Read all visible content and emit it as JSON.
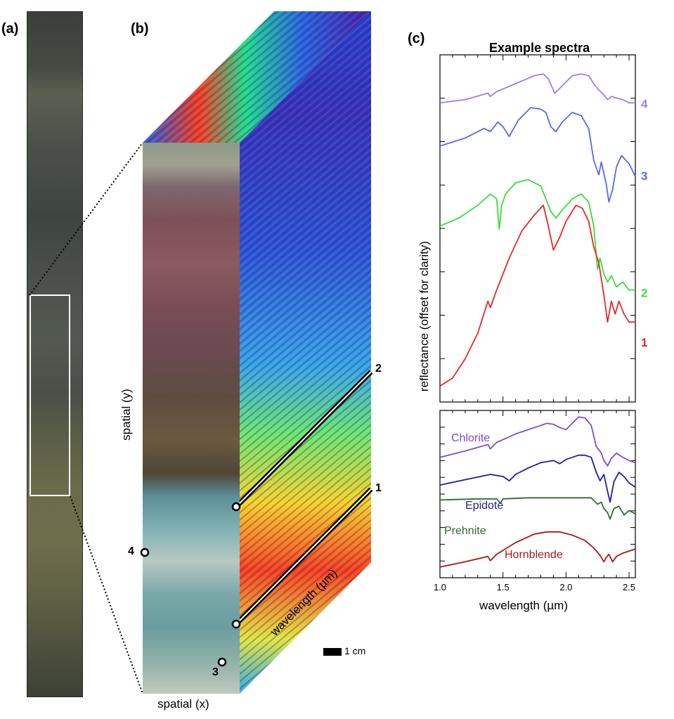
{
  "panels": {
    "a": "(a)",
    "b": "(b)",
    "c": "(c)"
  },
  "cube": {
    "axis_y": "spatial (y)",
    "axis_x": "spatial (x)",
    "axis_z": "wavelength (µm)",
    "scale_bar": "1 cm",
    "point_labels": [
      "1",
      "2",
      "3",
      "4"
    ]
  },
  "chart_data": [
    {
      "type": "line",
      "title": "Example spectra",
      "ylabel": "reflectance (offset for clarity)",
      "xlim": [
        1.0,
        2.55
      ],
      "series": [
        {
          "name": "4",
          "color": "#9f7fe0",
          "x": [
            1.0,
            1.2,
            1.38,
            1.4,
            1.45,
            1.6,
            1.75,
            1.82,
            1.86,
            1.91,
            1.95,
            2.05,
            2.12,
            2.18,
            2.22,
            2.26,
            2.3,
            2.33,
            2.36,
            2.4,
            2.45,
            2.5,
            2.55
          ],
          "y": [
            0.82,
            0.84,
            0.88,
            0.86,
            0.89,
            0.94,
            0.99,
            1.0,
            0.97,
            0.88,
            0.91,
            0.99,
            1.0,
            0.99,
            0.94,
            0.9,
            0.87,
            0.84,
            0.86,
            0.85,
            0.84,
            0.82,
            0.82
          ]
        },
        {
          "name": "3",
          "color": "#5a6ae0",
          "x": [
            1.0,
            1.2,
            1.35,
            1.4,
            1.46,
            1.5,
            1.55,
            1.62,
            1.72,
            1.8,
            1.84,
            1.88,
            1.92,
            1.97,
            2.05,
            2.12,
            2.18,
            2.22,
            2.26,
            2.28,
            2.32,
            2.34,
            2.37,
            2.4,
            2.44,
            2.5,
            2.55
          ],
          "y": [
            0.55,
            0.6,
            0.66,
            0.64,
            0.7,
            0.67,
            0.61,
            0.71,
            0.79,
            0.78,
            0.76,
            0.67,
            0.64,
            0.7,
            0.76,
            0.74,
            0.66,
            0.46,
            0.37,
            0.45,
            0.31,
            0.2,
            0.28,
            0.42,
            0.49,
            0.44,
            0.36
          ]
        },
        {
          "name": "2",
          "color": "#3cdc3c",
          "x": [
            1.0,
            1.15,
            1.3,
            1.4,
            1.45,
            1.47,
            1.49,
            1.52,
            1.6,
            1.7,
            1.8,
            1.88,
            1.92,
            1.97,
            2.05,
            2.12,
            2.18,
            2.22,
            2.25,
            2.27,
            2.3,
            2.33,
            2.36,
            2.4,
            2.45,
            2.5,
            2.55
          ],
          "y": [
            0.05,
            0.1,
            0.18,
            0.25,
            0.22,
            0.03,
            0.18,
            0.25,
            0.32,
            0.34,
            0.3,
            0.14,
            0.1,
            0.15,
            0.22,
            0.25,
            0.2,
            0.05,
            -0.22,
            -0.15,
            -0.25,
            -0.3,
            -0.26,
            -0.33,
            -0.3,
            -0.35,
            -0.35
          ]
        },
        {
          "name": "1",
          "color": "#e62828",
          "x": [
            1.0,
            1.1,
            1.2,
            1.3,
            1.38,
            1.4,
            1.45,
            1.55,
            1.65,
            1.75,
            1.82,
            1.86,
            1.9,
            1.95,
            2.0,
            2.08,
            2.13,
            2.18,
            2.22,
            2.26,
            2.3,
            2.33,
            2.36,
            2.39,
            2.42,
            2.46,
            2.5,
            2.55
          ],
          "y": [
            -0.95,
            -0.9,
            -0.78,
            -0.62,
            -0.42,
            -0.46,
            -0.35,
            -0.15,
            0.02,
            0.12,
            0.18,
            0.05,
            -0.1,
            -0.02,
            0.08,
            0.18,
            0.16,
            0.08,
            -0.08,
            -0.18,
            -0.38,
            -0.55,
            -0.42,
            -0.5,
            -0.42,
            -0.5,
            -0.55,
            -0.55
          ]
        }
      ]
    },
    {
      "type": "line",
      "xlabel": "wavelength (µm)",
      "xlim": [
        1.0,
        2.55
      ],
      "xticks": [
        "1.0",
        "1.5",
        "2.0",
        "2.5"
      ],
      "series": [
        {
          "name": "Chlorite",
          "color": "#7a4fcf",
          "x": [
            1.0,
            1.2,
            1.38,
            1.4,
            1.45,
            1.6,
            1.75,
            1.85,
            1.9,
            1.95,
            2.0,
            2.05,
            2.1,
            2.15,
            2.2,
            2.24,
            2.28,
            2.3,
            2.33,
            2.36,
            2.4,
            2.45,
            2.5,
            2.55
          ],
          "y": [
            0.58,
            0.64,
            0.7,
            0.66,
            0.72,
            0.8,
            0.86,
            0.9,
            0.89,
            0.86,
            0.84,
            0.9,
            0.96,
            0.95,
            0.88,
            0.68,
            0.62,
            0.55,
            0.5,
            0.57,
            0.62,
            0.58,
            0.55,
            0.53
          ]
        },
        {
          "name": "Epidote",
          "color": "#1f1f9a",
          "x": [
            1.0,
            1.2,
            1.4,
            1.5,
            1.55,
            1.6,
            1.7,
            1.8,
            1.9,
            1.95,
            2.0,
            2.05,
            2.1,
            2.15,
            2.2,
            2.24,
            2.27,
            2.3,
            2.33,
            2.35,
            2.38,
            2.42,
            2.46,
            2.5,
            2.55
          ],
          "y": [
            0.32,
            0.37,
            0.42,
            0.4,
            0.36,
            0.42,
            0.48,
            0.53,
            0.55,
            0.52,
            0.56,
            0.58,
            0.6,
            0.6,
            0.58,
            0.44,
            0.36,
            0.42,
            0.26,
            0.16,
            0.35,
            0.44,
            0.4,
            0.34,
            0.3
          ]
        },
        {
          "name": "Prehnite",
          "color": "#2f6a2f",
          "x": [
            1.0,
            1.3,
            1.45,
            1.48,
            1.5,
            1.7,
            1.9,
            2.1,
            2.2,
            2.25,
            2.28,
            2.3,
            2.33,
            2.35,
            2.38,
            2.42,
            2.46,
            2.5,
            2.55
          ],
          "y": [
            0.18,
            0.19,
            0.19,
            0.15,
            0.19,
            0.2,
            0.2,
            0.2,
            0.2,
            0.14,
            0.16,
            0.1,
            0.06,
            0.0,
            0.1,
            0.12,
            0.04,
            0.08,
            0.05
          ]
        },
        {
          "name": "Hornblende",
          "color": "#a81818",
          "x": [
            1.0,
            1.2,
            1.38,
            1.4,
            1.45,
            1.6,
            1.75,
            1.85,
            1.95,
            2.05,
            2.15,
            2.22,
            2.27,
            2.3,
            2.32,
            2.34,
            2.37,
            2.4,
            2.45,
            2.5,
            2.55
          ],
          "y": [
            -0.45,
            -0.4,
            -0.35,
            -0.39,
            -0.33,
            -0.22,
            -0.14,
            -0.12,
            -0.12,
            -0.15,
            -0.2,
            -0.27,
            -0.34,
            -0.4,
            -0.36,
            -0.33,
            -0.4,
            -0.35,
            -0.32,
            -0.3,
            -0.28
          ]
        }
      ]
    }
  ]
}
